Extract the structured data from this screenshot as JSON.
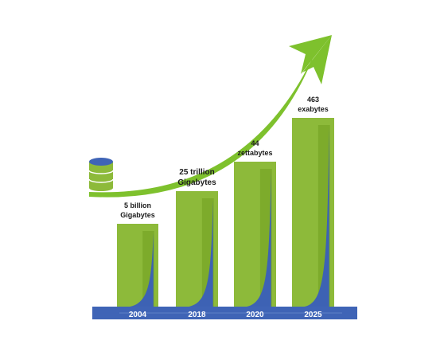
{
  "chart_data": {
    "type": "bar",
    "categories": [
      "2004",
      "2018",
      "2020",
      "2025"
    ],
    "data_labels": [
      [
        "5 billion",
        "Gigabytes"
      ],
      [
        "25 trillion",
        "Gigabytes"
      ],
      [
        "44",
        "zettabytes"
      ],
      [
        "463",
        "exabytes"
      ]
    ],
    "grid": false,
    "legend": "none",
    "trend_arrow": "upward",
    "icon": "database-icon",
    "colors": {
      "bar": "#8dba3a",
      "bar_inner": "#7dab2b",
      "fill_curve": "#3d62b4",
      "arrow": "#7ec12d",
      "axis_band": "#3f64b6",
      "database_top": "#3f64b6",
      "database_body": "#8dba3a"
    }
  }
}
